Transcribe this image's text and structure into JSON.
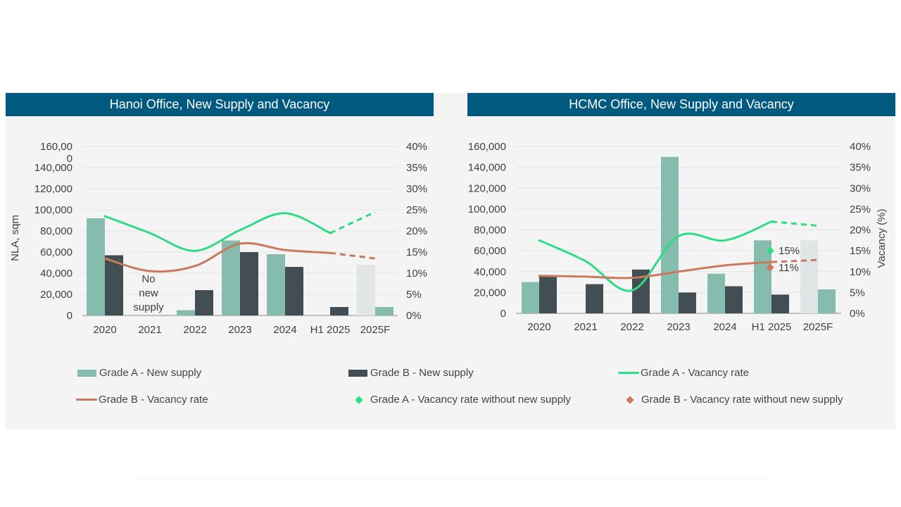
{
  "colors": {
    "grade_a_bar": "#85bcae",
    "grade_b_bar": "#424e53",
    "forecast_bar": "#e1e5e5",
    "grade_a_line": "#2fdc86",
    "grade_b_line": "#c97a5c",
    "grade_a_marker": "#2fdc86",
    "grade_b_marker": "#c97a5c",
    "title_bar": "#005a80"
  },
  "chart_data": [
    {
      "type": "bar",
      "title": "Hanoi Office, New Supply and Vacancy",
      "categories": [
        "2020",
        "2021",
        "2022",
        "2023",
        "2024",
        "H1 2025",
        "2025F"
      ],
      "ylabel": "NLA, sqm",
      "y2label": "",
      "ylim": [
        0,
        160000
      ],
      "y2lim": [
        0,
        40
      ],
      "yticks": [
        "0",
        "20,000",
        "40,000",
        "60,000",
        "80,000",
        "100,000",
        "120,000",
        "140,000",
        "160,00\n0"
      ],
      "y2ticks": [
        "0%",
        "5%",
        "10%",
        "15%",
        "20%",
        "25%",
        "30%",
        "35%",
        "40%"
      ],
      "annotation": [
        "No",
        "new",
        "supply"
      ],
      "series": [
        {
          "name": "Grade A - New supply",
          "kind": "bar",
          "values": [
            92000,
            0,
            5000,
            71000,
            58000,
            0,
            48000
          ]
        },
        {
          "name": "Grade B - New supply",
          "kind": "bar",
          "values": [
            57000,
            0,
            24000,
            60000,
            46000,
            8000,
            8000
          ]
        },
        {
          "name": "Grade A - Vacancy rate",
          "kind": "line",
          "values": [
            23.5,
            19.5,
            15.3,
            20.2,
            24.2,
            19.5,
            24.5
          ],
          "forecast_from": 5
        },
        {
          "name": "Grade B - Vacancy rate",
          "kind": "line",
          "values": [
            13.5,
            10.5,
            11.7,
            17.0,
            15.5,
            14.8,
            13.5
          ],
          "forecast_from": 5
        }
      ],
      "forecast_category": "2025F"
    },
    {
      "type": "bar",
      "title": "HCMC Office, New Supply and Vacancy",
      "categories": [
        "2020",
        "2021",
        "2022",
        "2023",
        "2024",
        "H1 2025",
        "2025F"
      ],
      "ylabel": "",
      "y2label": "Vacancy (%)",
      "ylim": [
        0,
        160000
      ],
      "y2lim": [
        0,
        40
      ],
      "yticks": [
        "0",
        "20,000",
        "40,000",
        "60,000",
        "80,000",
        "100,000",
        "120,000",
        "140,000",
        "160,000"
      ],
      "y2ticks": [
        "0%",
        "5%",
        "10%",
        "15%",
        "20%",
        "25%",
        "30%",
        "35%",
        "40%"
      ],
      "series": [
        {
          "name": "Grade A - New supply",
          "kind": "bar",
          "values": [
            30000,
            0,
            0,
            150000,
            38000,
            70000,
            70000
          ]
        },
        {
          "name": "Grade B - New supply",
          "kind": "bar",
          "values": [
            36000,
            28000,
            42000,
            20000,
            26000,
            18000,
            23000
          ]
        },
        {
          "name": "Grade A - Vacancy rate",
          "kind": "line",
          "values": [
            17.5,
            12.5,
            5.5,
            18.5,
            17.5,
            22.0,
            21.0
          ],
          "forecast_from": 5
        },
        {
          "name": "Grade B - Vacancy rate",
          "kind": "line",
          "values": [
            9.0,
            8.8,
            8.5,
            10.0,
            11.5,
            12.3,
            12.8
          ],
          "forecast_from": 5
        }
      ],
      "markers": [
        {
          "series": "Grade A - Vacancy rate without new supply",
          "category": "H1 2025",
          "value": 15,
          "label": "15%"
        },
        {
          "series": "Grade B - Vacancy rate without new supply",
          "category": "H1 2025",
          "value": 11,
          "label": "11%"
        }
      ],
      "forecast_category": "2025F"
    }
  ],
  "legend": [
    {
      "name": "Grade A - New supply",
      "kind": "bar",
      "color_key": "grade_a_bar"
    },
    {
      "name": "Grade B - New supply",
      "kind": "bar",
      "color_key": "grade_b_bar"
    },
    {
      "name": "Grade A - Vacancy rate",
      "kind": "line",
      "color_key": "grade_a_line"
    },
    {
      "name": "Grade B - Vacancy rate",
      "kind": "line",
      "color_key": "grade_b_line"
    },
    {
      "name": "Grade A - Vacancy rate without new supply",
      "kind": "diamond",
      "color_key": "grade_a_marker"
    },
    {
      "name": "Grade B - Vacancy rate without new supply",
      "kind": "diamond",
      "color_key": "grade_b_marker"
    }
  ]
}
